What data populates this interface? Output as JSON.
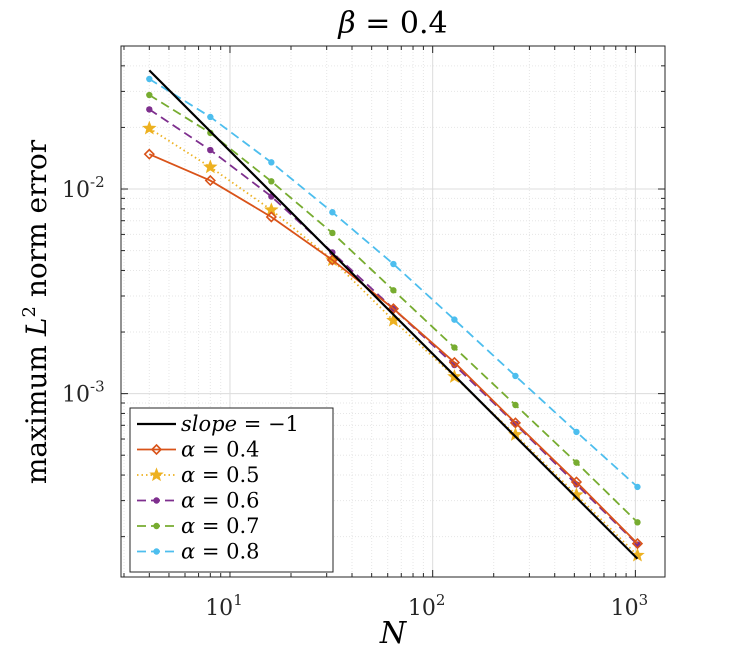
{
  "chart_data": {
    "type": "line",
    "title": "β = 0.4",
    "xlabel": "N",
    "ylabel": "maximum L² norm error",
    "ylabel_text": {
      "prefix": "maximum ",
      "var": "L",
      "sup": "2",
      "suffix": " norm error"
    },
    "xscale": "log",
    "yscale": "log",
    "xlim": [
      2.9,
      1400
    ],
    "ylim": [
      0.000127,
      0.05
    ],
    "grid": true,
    "legend_position": "bottom-left",
    "x_ticks": [
      {
        "value": 10,
        "base": "10",
        "exp": "1"
      },
      {
        "value": 100,
        "base": "10",
        "exp": "2"
      },
      {
        "value": 1000,
        "base": "10",
        "exp": "3"
      }
    ],
    "y_ticks": [
      {
        "value": 0.001,
        "base": "10",
        "exp": "-3"
      },
      {
        "value": 0.01,
        "base": "10",
        "exp": "-2"
      }
    ],
    "x": [
      4,
      8,
      16,
      32,
      64,
      128,
      256,
      512,
      1024
    ],
    "series": [
      {
        "name": "slope = −1",
        "label_lhs": "slope",
        "label_rhs": "= −1",
        "color": "#000000",
        "style": "solid",
        "marker": "none",
        "x": [
          4,
          1024
        ],
        "values": [
          0.038,
          0.000156
        ]
      },
      {
        "name": "α = 0.4",
        "label_lhs": "α",
        "label_rhs": "= 0.4",
        "color": "#D95319",
        "style": "solid",
        "marker": "diamond",
        "values": [
          0.0148,
          0.011,
          0.0073,
          0.0045,
          0.0026,
          0.00142,
          0.00072,
          0.00037,
          0.000185
        ]
      },
      {
        "name": "α = 0.5",
        "label_lhs": "α",
        "label_rhs": "= 0.5",
        "color": "#EDB120",
        "style": "dotted",
        "marker": "star",
        "values": [
          0.0198,
          0.0128,
          0.0079,
          0.0045,
          0.00228,
          0.00121,
          0.00063,
          0.00032,
          0.000162
        ]
      },
      {
        "name": "α = 0.6",
        "label_lhs": "α",
        "label_rhs": "= 0.6",
        "color": "#7E2F8E",
        "style": "dashed",
        "marker": "dot",
        "values": [
          0.0245,
          0.0155,
          0.0092,
          0.0049,
          0.0026,
          0.00138,
          0.00071,
          0.00036,
          0.000183
        ]
      },
      {
        "name": "α = 0.7",
        "label_lhs": "α",
        "label_rhs": "= 0.7",
        "color": "#77AC30",
        "style": "dashed",
        "marker": "dot",
        "values": [
          0.0288,
          0.0188,
          0.0109,
          0.0061,
          0.0032,
          0.00168,
          0.00088,
          0.00046,
          0.000235
        ]
      },
      {
        "name": "α = 0.8",
        "label_lhs": "α",
        "label_rhs": "= 0.8",
        "color": "#4DBEEE",
        "style": "dashed",
        "marker": "dot",
        "values": [
          0.0345,
          0.0225,
          0.0135,
          0.0077,
          0.0043,
          0.0023,
          0.00122,
          0.00065,
          0.00035
        ]
      }
    ]
  }
}
